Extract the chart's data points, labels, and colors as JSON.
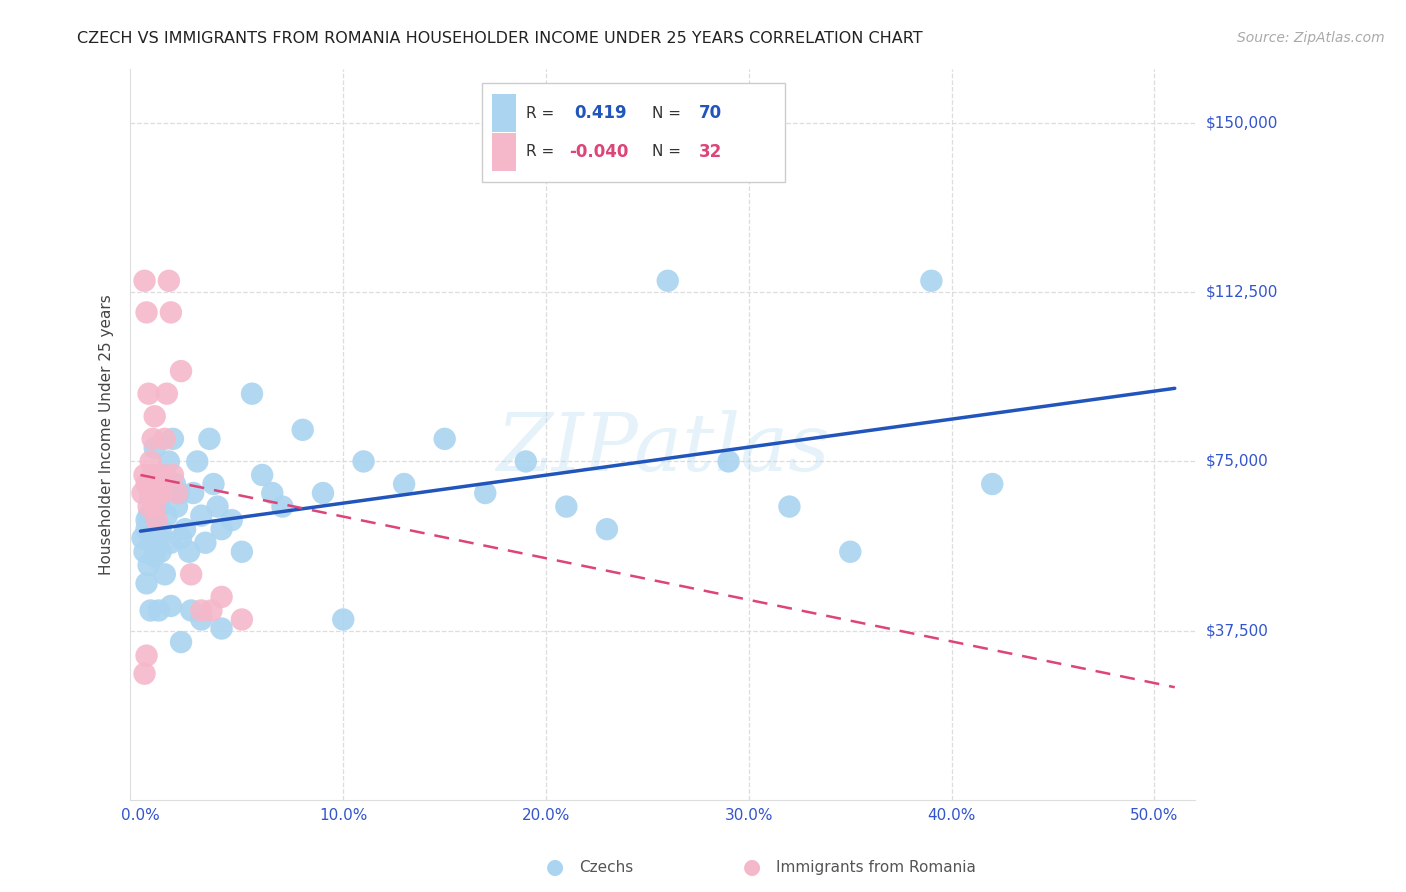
{
  "title": "CZECH VS IMMIGRANTS FROM ROMANIA HOUSEHOLDER INCOME UNDER 25 YEARS CORRELATION CHART",
  "source": "Source: ZipAtlas.com",
  "ylabel": "Householder Income Under 25 years",
  "ylim": [
    0,
    162000
  ],
  "xlim": [
    -0.005,
    0.52
  ],
  "blue_color": "#aad4f0",
  "pink_color": "#f5b8ca",
  "line_blue": "#2255bb",
  "line_pink": "#dd4477",
  "watermark_text": "ZIPatlas",
  "watermark_color": "#aad4f0",
  "grid_color": "#dddddd",
  "title_color": "#222222",
  "source_color": "#aaaaaa",
  "ylabel_color": "#444444",
  "tick_color": "#3355cc",
  "legend_blue_R": "0.419",
  "legend_blue_N": "70",
  "legend_pink_R": "-0.040",
  "legend_pink_N": "32",
  "blue_line_y0": 55000,
  "blue_line_y1": 95000,
  "pink_line_y0": 72000,
  "pink_line_y1": 25000,
  "czechs_x": [
    0.001,
    0.002,
    0.003,
    0.003,
    0.004,
    0.004,
    0.005,
    0.005,
    0.006,
    0.006,
    0.007,
    0.007,
    0.008,
    0.008,
    0.009,
    0.009,
    0.01,
    0.01,
    0.011,
    0.012,
    0.013,
    0.014,
    0.015,
    0.016,
    0.017,
    0.018,
    0.019,
    0.02,
    0.022,
    0.024,
    0.026,
    0.028,
    0.03,
    0.032,
    0.034,
    0.036,
    0.038,
    0.04,
    0.045,
    0.05,
    0.055,
    0.06,
    0.065,
    0.07,
    0.08,
    0.09,
    0.1,
    0.11,
    0.13,
    0.15,
    0.17,
    0.19,
    0.21,
    0.23,
    0.26,
    0.29,
    0.32,
    0.35,
    0.39,
    0.42,
    0.003,
    0.005,
    0.007,
    0.009,
    0.012,
    0.015,
    0.02,
    0.025,
    0.03,
    0.04
  ],
  "czechs_y": [
    58000,
    55000,
    62000,
    60000,
    52000,
    63000,
    59000,
    67000,
    57000,
    64000,
    54000,
    61000,
    56000,
    70000,
    58000,
    65000,
    60000,
    55000,
    68000,
    72000,
    63000,
    75000,
    57000,
    80000,
    70000,
    65000,
    68000,
    58000,
    60000,
    55000,
    68000,
    75000,
    63000,
    57000,
    80000,
    70000,
    65000,
    60000,
    62000,
    55000,
    90000,
    72000,
    68000,
    65000,
    82000,
    68000,
    40000,
    75000,
    70000,
    80000,
    68000,
    75000,
    65000,
    60000,
    115000,
    75000,
    65000,
    55000,
    115000,
    70000,
    48000,
    42000,
    78000,
    42000,
    50000,
    43000,
    35000,
    42000,
    40000,
    38000
  ],
  "romania_x": [
    0.001,
    0.002,
    0.002,
    0.003,
    0.003,
    0.004,
    0.004,
    0.005,
    0.005,
    0.006,
    0.006,
    0.007,
    0.007,
    0.008,
    0.008,
    0.009,
    0.01,
    0.011,
    0.012,
    0.013,
    0.014,
    0.015,
    0.016,
    0.018,
    0.02,
    0.025,
    0.03,
    0.035,
    0.04,
    0.05,
    0.002,
    0.003
  ],
  "romania_y": [
    68000,
    72000,
    115000,
    108000,
    70000,
    65000,
    90000,
    75000,
    68000,
    80000,
    72000,
    85000,
    65000,
    62000,
    70000,
    68000,
    68000,
    72000,
    80000,
    90000,
    115000,
    108000,
    72000,
    68000,
    95000,
    50000,
    42000,
    42000,
    45000,
    40000,
    28000,
    32000
  ]
}
